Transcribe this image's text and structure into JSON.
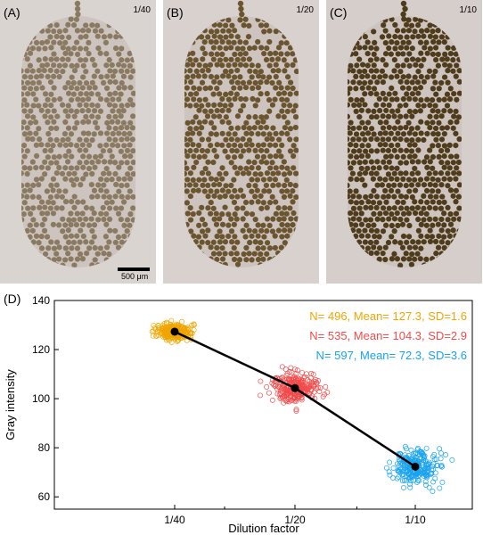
{
  "panels": [
    {
      "label": "(A)",
      "dilution": "1/40",
      "fill": "#8b7a62",
      "bg": "#dad4d1",
      "seed": 11
    },
    {
      "label": "(B)",
      "dilution": "1/20",
      "fill": "#6b5530",
      "bg": "#d8d1ce",
      "seed": 23
    },
    {
      "label": "(C)",
      "dilution": "1/10",
      "fill": "#4f3c1c",
      "bg": "#d5cecb",
      "seed": 37
    }
  ],
  "scalebar": {
    "label": "500 μm"
  },
  "chart_data": {
    "type": "scatter",
    "panel_label": "(D)",
    "xlabel": "Dilution factor",
    "ylabel": "Gray intensity",
    "categories": [
      "1/40",
      "1/20",
      "1/10"
    ],
    "ylim": [
      55,
      140
    ],
    "yticks": [
      60,
      80,
      100,
      120,
      140
    ],
    "series": [
      {
        "dilution": "1/40",
        "N": 496,
        "mean": 127.3,
        "sd": 1.6,
        "color": "#f0a500",
        "legend": "N= 496, Mean= 127.3, SD=1.6"
      },
      {
        "dilution": "1/20",
        "N": 535,
        "mean": 104.3,
        "sd": 2.9,
        "color": "#f24b4b",
        "legend": "N= 535, Mean= 104.3, SD=2.9"
      },
      {
        "dilution": "1/10",
        "N": 597,
        "mean": 72.3,
        "sd": 3.6,
        "color": "#1aa3ef",
        "legend": "N= 597, Mean= 72.3, SD=3.6"
      }
    ],
    "mean_line": true
  }
}
